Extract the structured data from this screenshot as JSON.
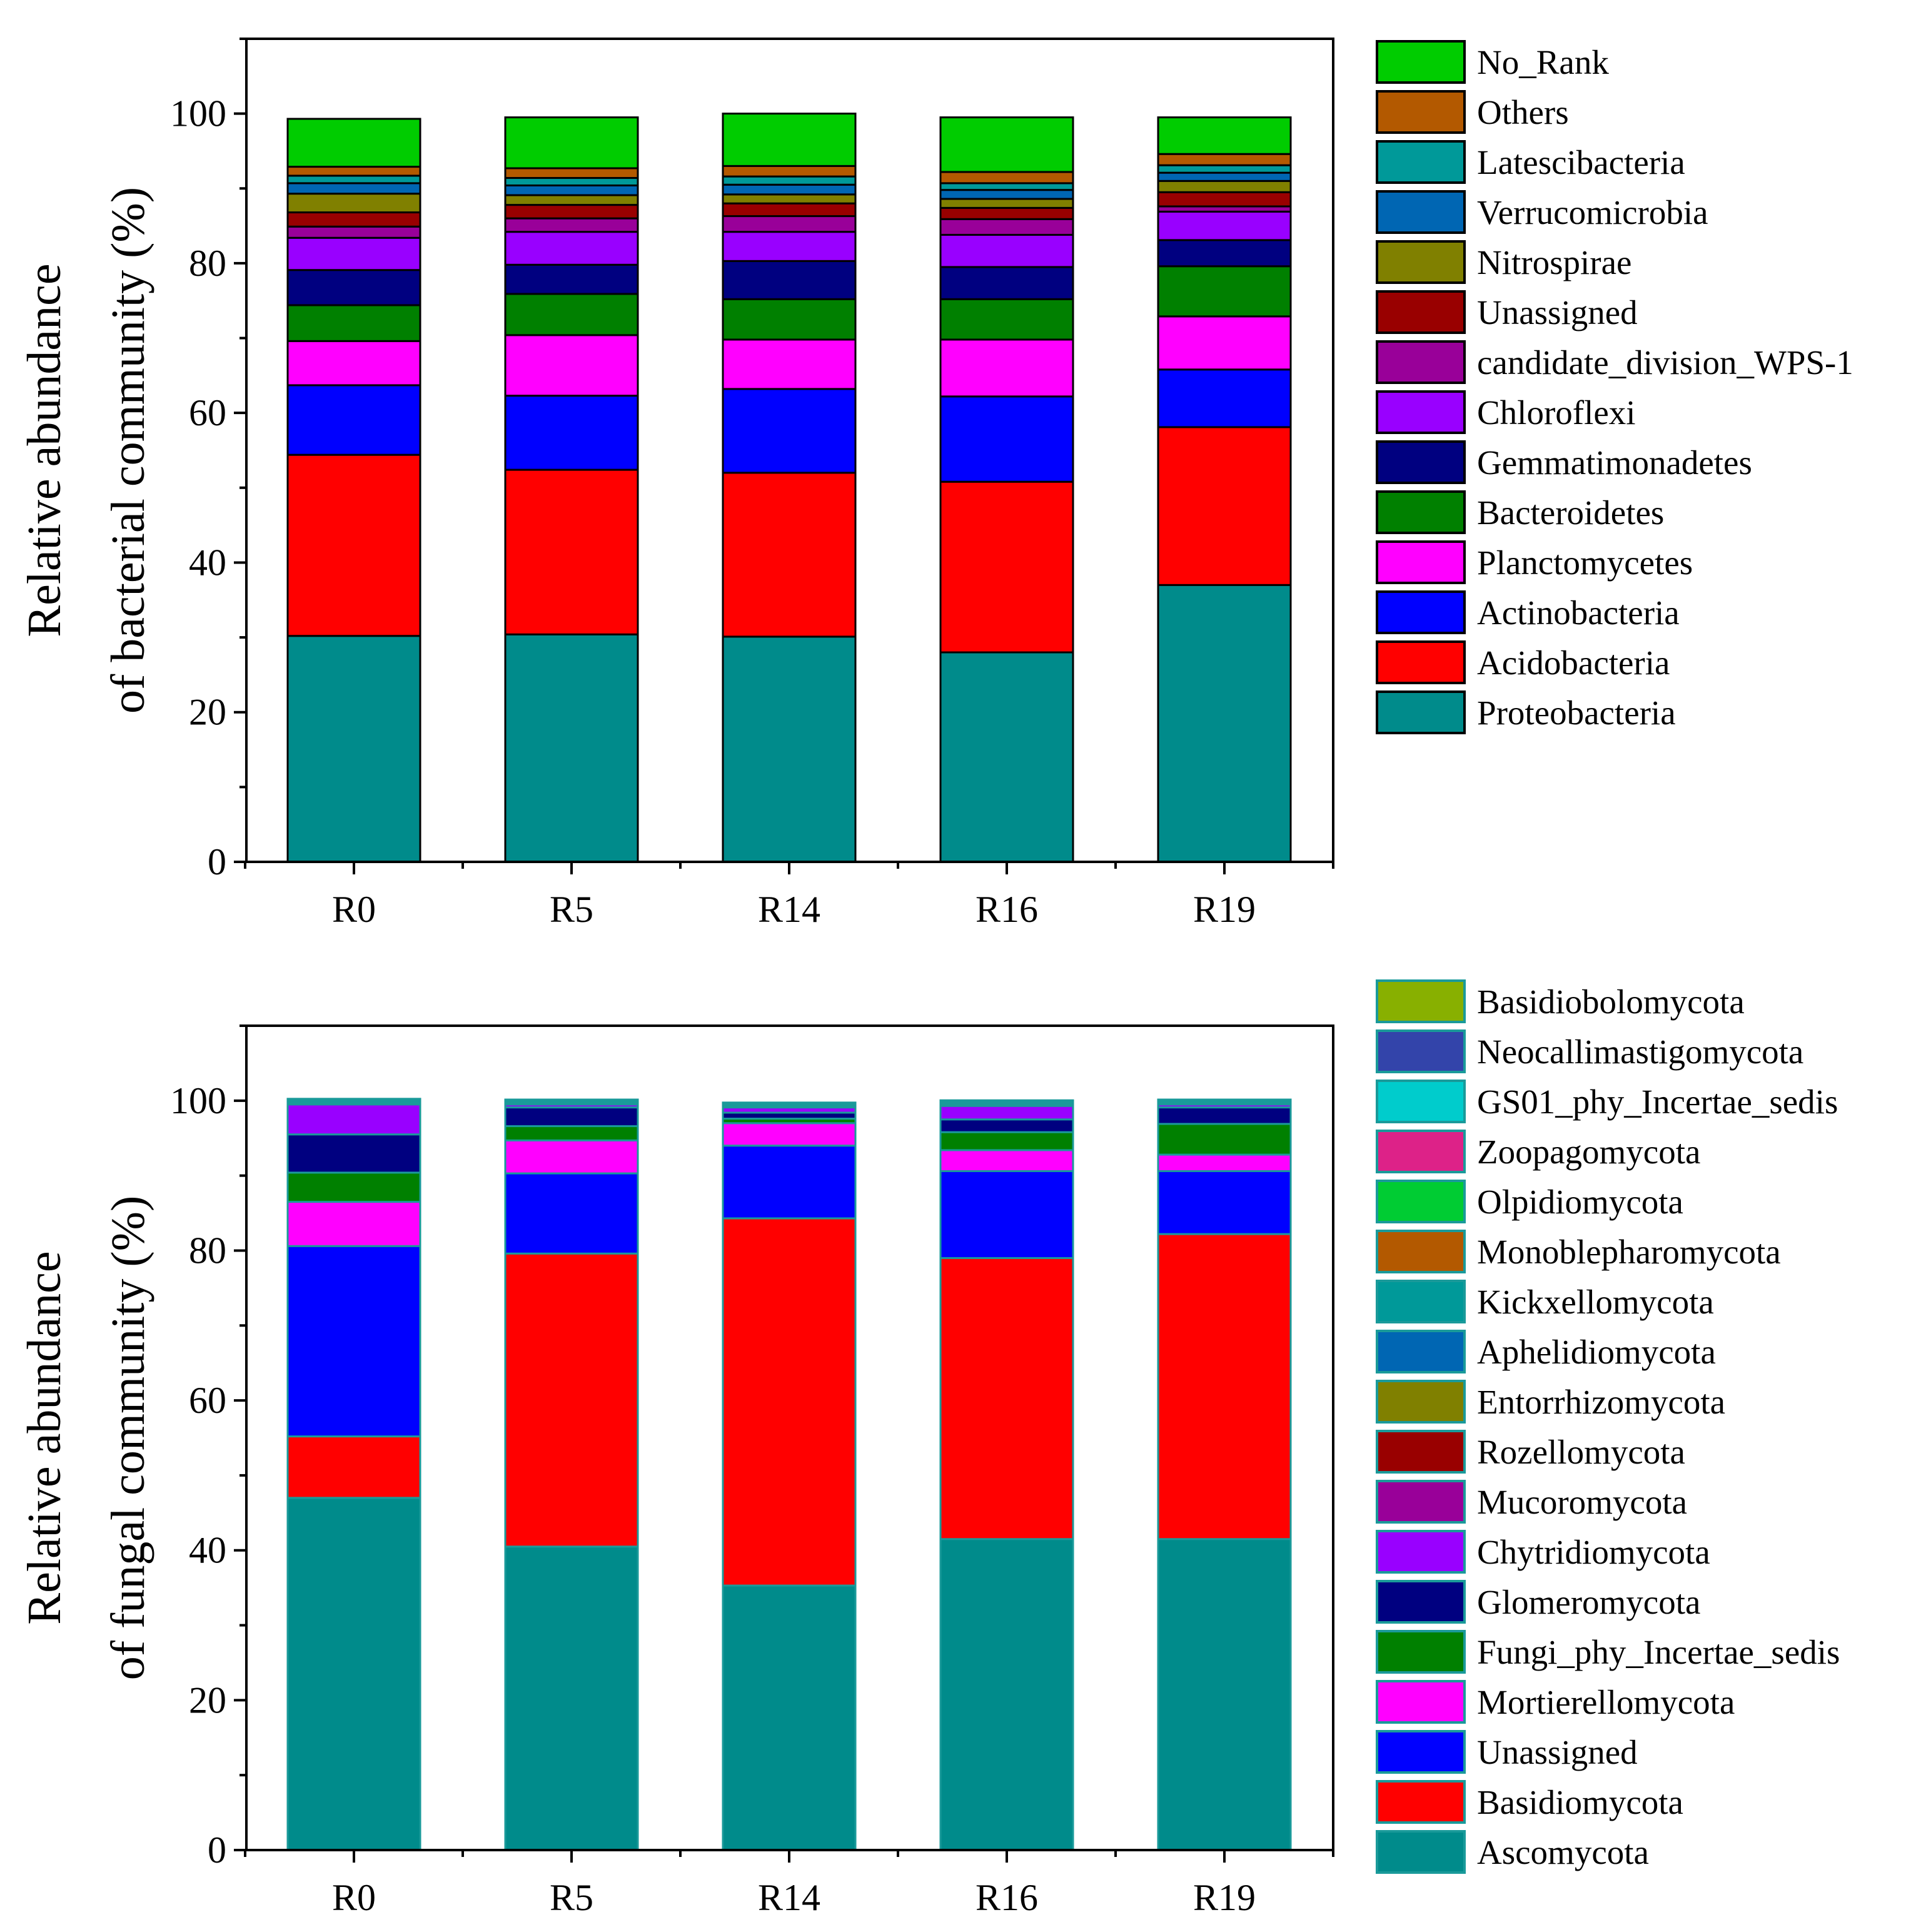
{
  "chart_data": [
    {
      "type": "bar",
      "stacked": true,
      "title": "",
      "xlabel": "",
      "ylabel_line1": "Relative abundance",
      "ylabel_line2": "of bacterial community (%)",
      "ylim": [
        0,
        110
      ],
      "yticks": [
        0,
        20,
        40,
        60,
        80,
        100
      ],
      "categories": [
        "R0",
        "R5",
        "R14",
        "R16",
        "R19"
      ],
      "legend_position": "right",
      "series": [
        {
          "name": "Proteobacteria",
          "color": "#008B8B",
          "values": [
            30.2,
            30.4,
            30.1,
            28.0,
            37.0
          ]
        },
        {
          "name": "Acidobacteria",
          "color": "#FF0000",
          "values": [
            24.2,
            22.0,
            21.9,
            22.8,
            21.1
          ]
        },
        {
          "name": "Actinobacteria",
          "color": "#0000FF",
          "values": [
            9.3,
            9.9,
            11.2,
            11.4,
            7.7
          ]
        },
        {
          "name": "Planctomycetes",
          "color": "#FF00FF",
          "values": [
            5.9,
            8.1,
            6.6,
            7.6,
            7.1
          ]
        },
        {
          "name": "Bacteroidetes",
          "color": "#008000",
          "values": [
            4.8,
            5.5,
            5.4,
            5.4,
            6.7
          ]
        },
        {
          "name": "Gemmatimonadetes",
          "color": "#000080",
          "values": [
            4.7,
            3.9,
            5.1,
            4.3,
            3.5
          ]
        },
        {
          "name": "Chloroflexi",
          "color": "#9900FF",
          "values": [
            4.3,
            4.4,
            3.9,
            4.3,
            3.8
          ]
        },
        {
          "name": "candidate_division_WPS-1",
          "color": "#990099",
          "values": [
            1.5,
            1.8,
            2.1,
            2.1,
            0.7
          ]
        },
        {
          "name": "Unassigned",
          "color": "#990000",
          "values": [
            1.9,
            1.8,
            1.7,
            1.5,
            1.9
          ]
        },
        {
          "name": "Nitrospirae",
          "color": "#808000",
          "values": [
            2.5,
            1.3,
            1.2,
            1.2,
            1.5
          ]
        },
        {
          "name": "Verrucomicrobia",
          "color": "#0066B3",
          "values": [
            1.4,
            1.3,
            1.3,
            1.2,
            1.1
          ]
        },
        {
          "name": "Latescibacteria",
          "color": "#009999",
          "values": [
            1.0,
            1.0,
            1.1,
            0.9,
            1.0
          ]
        },
        {
          "name": "Others",
          "color": "#B35900",
          "values": [
            1.2,
            1.3,
            1.4,
            1.5,
            1.5
          ]
        },
        {
          "name": "No_Rank",
          "color": "#00CC00",
          "values": [
            6.4,
            6.8,
            7.0,
            7.3,
            4.9
          ]
        }
      ]
    },
    {
      "type": "bar",
      "stacked": true,
      "title": "",
      "xlabel": "",
      "ylabel_line1": "Relative abundance",
      "ylabel_line2": "of fungal community (%)",
      "ylim": [
        0,
        110
      ],
      "yticks": [
        0,
        20,
        40,
        60,
        80,
        100
      ],
      "categories": [
        "R0",
        "R5",
        "R14",
        "R16",
        "R19"
      ],
      "legend_position": "right",
      "series": [
        {
          "name": "Ascomycota",
          "color": "#008B8B",
          "values": [
            47.0,
            40.5,
            35.3,
            41.5,
            41.5
          ]
        },
        {
          "name": "Basidiomycota",
          "color": "#FF0000",
          "values": [
            8.2,
            39.1,
            49.0,
            37.5,
            40.7
          ]
        },
        {
          "name": "Unassigned",
          "color": "#0000FF",
          "values": [
            25.4,
            10.7,
            9.7,
            11.6,
            8.4
          ]
        },
        {
          "name": "Mortierellomycota",
          "color": "#FF00FF",
          "values": [
            5.9,
            4.4,
            3.0,
            2.8,
            2.2
          ]
        },
        {
          "name": "Fungi_phy_Incertae_sedis",
          "color": "#008000",
          "values": [
            3.9,
            1.9,
            0.6,
            2.4,
            4.1
          ]
        },
        {
          "name": "Glomeromycota",
          "color": "#000080",
          "values": [
            5.1,
            2.5,
            0.8,
            1.7,
            2.2
          ]
        },
        {
          "name": "Chytridiomycota",
          "color": "#9900FF",
          "values": [
            4.0,
            0.4,
            0.7,
            1.8,
            0.4
          ]
        },
        {
          "name": "Mucoromycota",
          "color": "#990099",
          "values": [
            0.2,
            0.1,
            0.1,
            0.2,
            0.1
          ]
        },
        {
          "name": "Rozellomycota",
          "color": "#990000",
          "values": [
            0.1,
            0.1,
            0.1,
            0.1,
            0.1
          ]
        },
        {
          "name": "Entorrhizomycota",
          "color": "#808000",
          "values": [
            0.05,
            0.05,
            0.05,
            0.05,
            0.05
          ]
        },
        {
          "name": "Aphelidiomycota",
          "color": "#0066B3",
          "values": [
            0.05,
            0.05,
            0.05,
            0.05,
            0.05
          ]
        },
        {
          "name": "Kickxellomycota",
          "color": "#009999",
          "values": [
            0.05,
            0.05,
            0.05,
            0.05,
            0.05
          ]
        },
        {
          "name": "Monoblepharomycota",
          "color": "#B35900",
          "values": [
            0.05,
            0.05,
            0.05,
            0.05,
            0.05
          ]
        },
        {
          "name": "Olpidiomycota",
          "color": "#00CC33",
          "values": [
            0.05,
            0.05,
            0.05,
            0.05,
            0.05
          ]
        },
        {
          "name": "Zoopagomycota",
          "color": "#DD2288",
          "values": [
            0.05,
            0.05,
            0.05,
            0.05,
            0.05
          ]
        },
        {
          "name": "GS01_phy_Incertae_sedis",
          "color": "#00CCCC",
          "values": [
            0.05,
            0.05,
            0.05,
            0.05,
            0.05
          ]
        },
        {
          "name": "Neocallimastigomycota",
          "color": "#3344AA",
          "values": [
            0.05,
            0.05,
            0.05,
            0.05,
            0.05
          ]
        },
        {
          "name": "Basidiobolomycota",
          "color": "#88B000",
          "values": [
            0.05,
            0.05,
            0.05,
            0.05,
            0.05
          ]
        }
      ]
    }
  ]
}
